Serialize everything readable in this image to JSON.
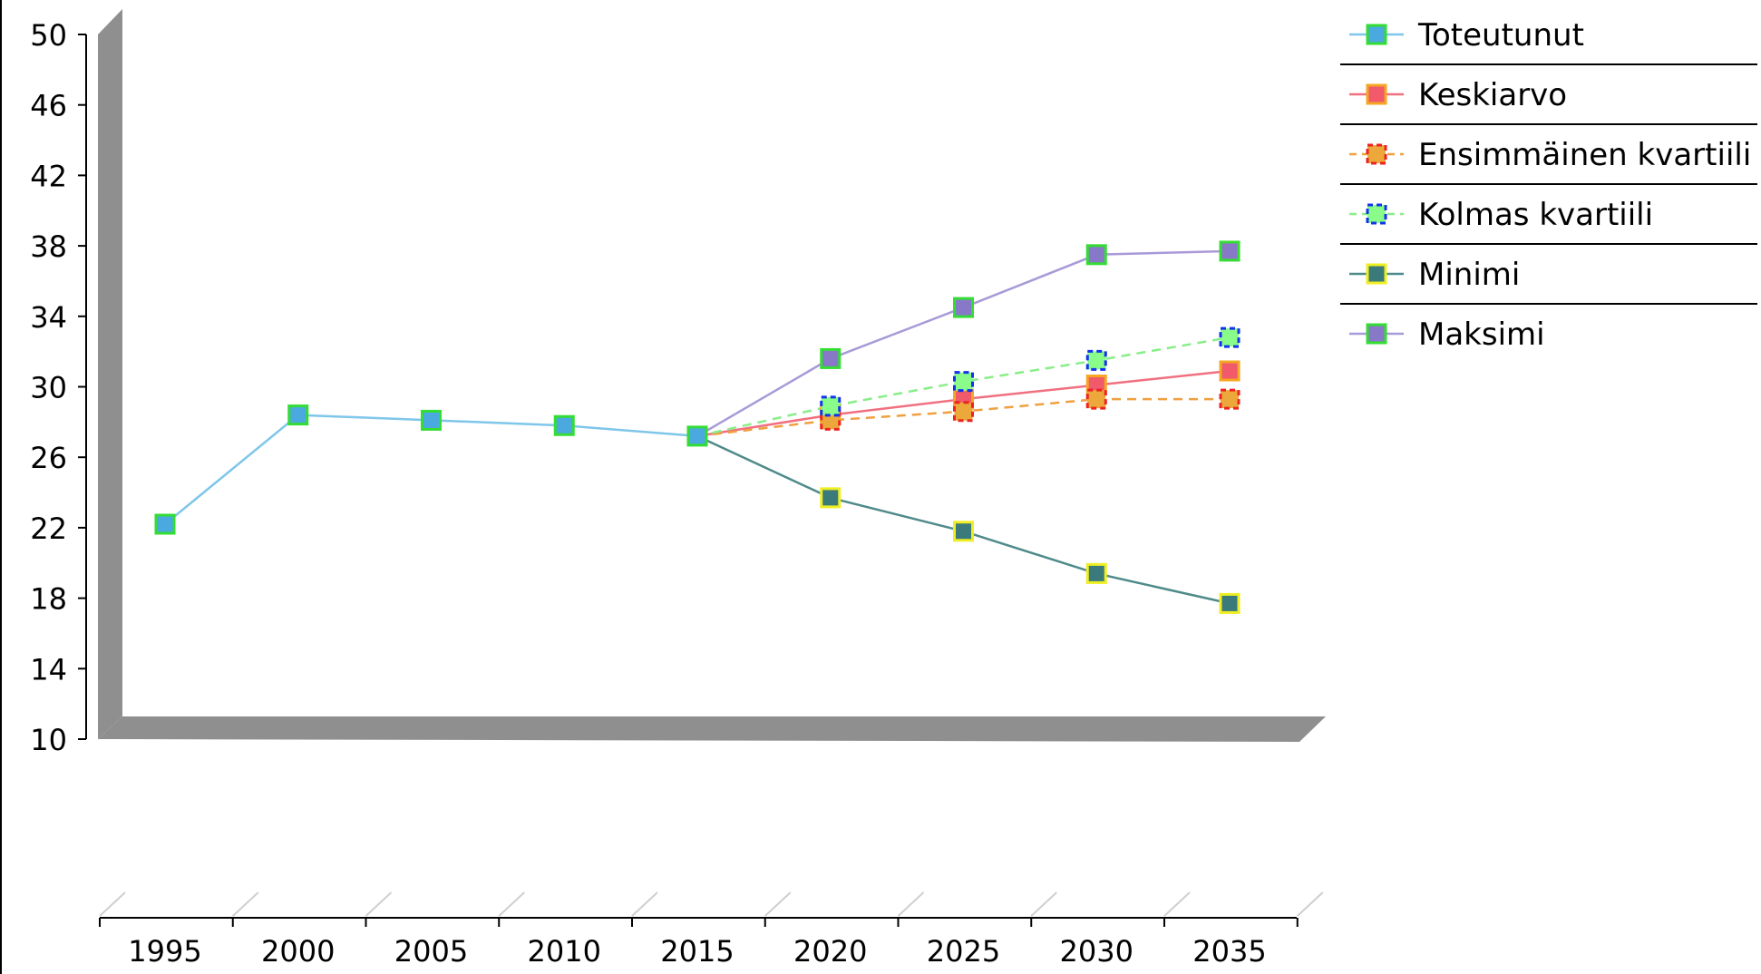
{
  "chart_data": {
    "type": "line",
    "title": "",
    "xlabel": "",
    "ylabel": "",
    "x": [
      "1995",
      "2000",
      "2005",
      "2010",
      "2015",
      "2020",
      "2025",
      "2030",
      "2035"
    ],
    "ylim": [
      10,
      50
    ],
    "yticks": [
      "50",
      "46",
      "42",
      "38",
      "34",
      "30",
      "26",
      "22",
      "18",
      "14",
      "10"
    ],
    "legend_position": "top-right",
    "series": [
      {
        "name": "Toteutunut",
        "values": [
          22.2,
          28.4,
          28.1,
          27.8,
          27.2,
          null,
          null,
          null,
          null
        ],
        "color": "#7ec6ea",
        "marker_fill": "#4aa9de",
        "marker_stroke": "#33dd33",
        "dashed": false
      },
      {
        "name": "Keskiarvo",
        "values": [
          null,
          null,
          null,
          null,
          27.2,
          28.4,
          29.3,
          30.1,
          30.9
        ],
        "color": "#f07080",
        "marker_fill": "#f05a6a",
        "marker_stroke": "#f5a623",
        "dashed": false
      },
      {
        "name": "Ensimmäinen kvartiili",
        "values": [
          null,
          null,
          null,
          null,
          27.2,
          28.1,
          28.6,
          29.3,
          29.3
        ],
        "color": "#f0a040",
        "marker_fill": "#eca83a",
        "marker_stroke": "#ee2222",
        "dashed": true
      },
      {
        "name": "Kolmas kvartiili",
        "values": [
          null,
          null,
          null,
          null,
          27.2,
          28.9,
          30.3,
          31.5,
          32.8
        ],
        "color": "#88ee88",
        "marker_fill": "#8afc8a",
        "marker_stroke": "#1133ee",
        "dashed": true
      },
      {
        "name": "Minimi",
        "values": [
          null,
          null,
          null,
          null,
          27.2,
          23.7,
          21.8,
          19.4,
          17.7
        ],
        "color": "#4f8a8a",
        "marker_fill": "#3a7a7a",
        "marker_stroke": "#eeee22",
        "dashed": false
      },
      {
        "name": "Maksimi",
        "values": [
          null,
          null,
          null,
          null,
          27.2,
          31.6,
          34.5,
          37.5,
          37.7
        ],
        "color": "#a89ad8",
        "marker_fill": "#8878c8",
        "marker_stroke": "#33dd33",
        "dashed": false
      }
    ]
  }
}
